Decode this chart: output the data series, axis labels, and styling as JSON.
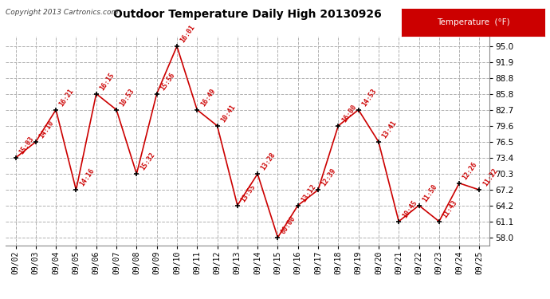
{
  "title": "Outdoor Temperature Daily High 20130926",
  "copyright": "Copyright 2013 Cartronics.com",
  "legend_label": "Temperature  (°F)",
  "dates": [
    "09/02",
    "09/03",
    "09/04",
    "09/05",
    "09/06",
    "09/07",
    "09/08",
    "09/09",
    "09/10",
    "09/11",
    "09/12",
    "09/13",
    "09/14",
    "09/15",
    "09/16",
    "09/17",
    "09/18",
    "09/19",
    "09/20",
    "09/21",
    "09/22",
    "09/23",
    "09/24",
    "09/25"
  ],
  "temps": [
    73.4,
    76.5,
    82.7,
    67.2,
    85.8,
    82.7,
    70.3,
    85.8,
    95.0,
    82.7,
    79.6,
    64.2,
    70.3,
    58.0,
    64.2,
    67.2,
    79.6,
    82.7,
    76.5,
    61.1,
    64.2,
    61.1,
    68.5,
    67.2
  ],
  "labels": [
    "15:03",
    "14:10",
    "16:21",
    "14:16",
    "16:15",
    "10:53",
    "15:32",
    "15:56",
    "16:01",
    "16:49",
    "10:41",
    "13:55",
    "13:28",
    "00:00",
    "13:12",
    "12:39",
    "16:00",
    "14:53",
    "13:41",
    "10:45",
    "11:50",
    "11:43",
    "12:26",
    "11:22"
  ],
  "yticks": [
    58.0,
    61.1,
    64.2,
    67.2,
    70.3,
    73.4,
    76.5,
    79.6,
    82.7,
    85.8,
    88.8,
    91.9,
    95.0
  ],
  "ylim": [
    56.5,
    97.0
  ],
  "line_color": "#cc0000",
  "marker_color": "#000000",
  "label_color": "#cc0000",
  "bg_color": "#ffffff",
  "grid_color": "#b0b0b0",
  "title_color": "#000000",
  "legend_bg": "#cc0000",
  "legend_fg": "#ffffff"
}
